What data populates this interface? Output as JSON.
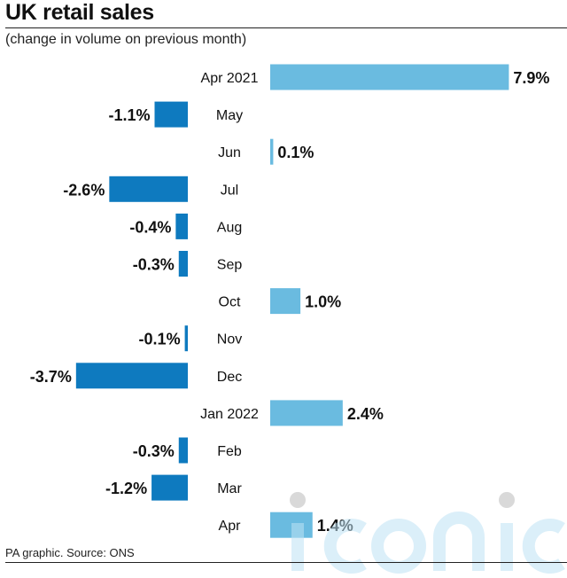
{
  "header": {
    "title": "UK retail sales",
    "subtitle": "(change in volume on previous month)"
  },
  "footer": {
    "source": "PA graphic. Source: ONS"
  },
  "colors": {
    "positive": "#6abbe0",
    "negative": "#0e7abf"
  },
  "watermark": {
    "text": "iconic"
  },
  "chart_data": {
    "type": "bar",
    "orientation": "horizontal",
    "title": "UK retail sales",
    "subtitle": "(change in volume on previous month)",
    "categories": [
      "Apr 2021",
      "May",
      "Jun",
      "Jul",
      "Aug",
      "Sep",
      "Oct",
      "Nov",
      "Dec",
      "Jan 2022",
      "Feb",
      "Mar",
      "Apr"
    ],
    "values": [
      7.9,
      -1.1,
      0.1,
      -2.6,
      -0.4,
      -0.3,
      1.0,
      -0.1,
      -3.7,
      2.4,
      -0.3,
      -1.2,
      1.4
    ],
    "value_labels": [
      "7.9%",
      "-1.1%",
      "0.1%",
      "-2.6%",
      "-0.4%",
      "-0.3%",
      "1.0%",
      "-0.1%",
      "-3.7%",
      "2.4%",
      "-0.3%",
      "-1.2%",
      "1.4%"
    ],
    "unit": "%",
    "grid": false,
    "legend": "none"
  }
}
